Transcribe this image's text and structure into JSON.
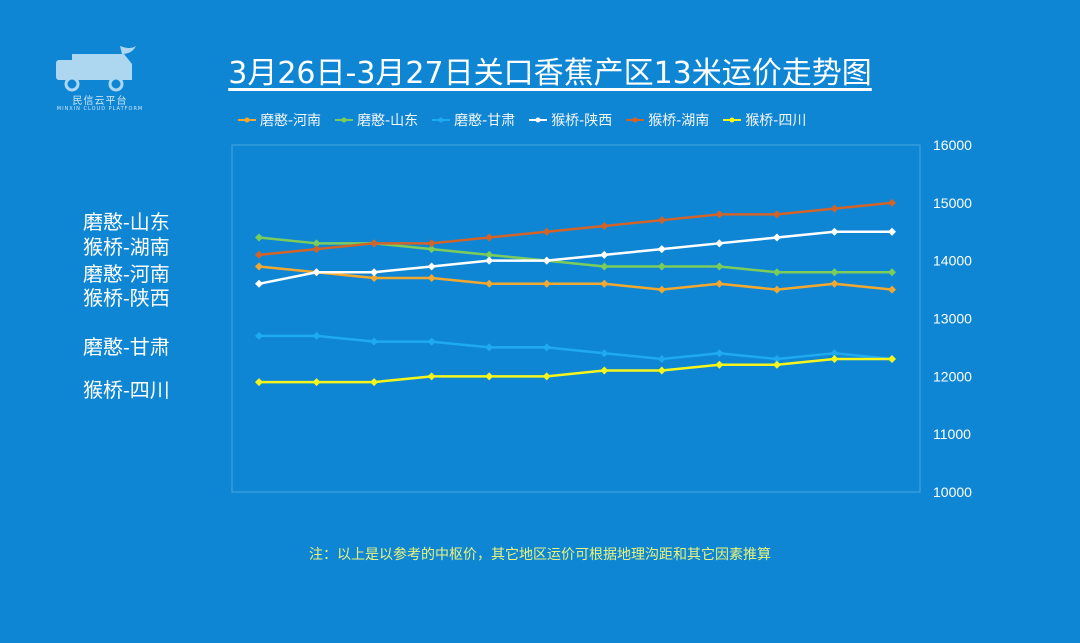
{
  "header": {
    "logo_text": "民信云平台",
    "logo_subtext": "MINXIN CLOUD PLATFORM",
    "title": "3月26日-3月27日关口香蕉产区13米运价走势图"
  },
  "side_labels": [
    "磨憨-山东",
    "猴桥-湖南",
    "磨憨-河南",
    "猴桥-陕西",
    "磨憨-甘肃",
    "猴桥-四川"
  ],
  "note": "注：以上是以参考的中枢价，其它地区运价可根据地理沟距和其它因素推算",
  "chart_data": {
    "type": "line",
    "title": "3月26日-3月27日关口香蕉产区13米运价走势图",
    "xlabel": "",
    "ylabel": "",
    "ylim": [
      10000,
      16000
    ],
    "yticks": [
      10000,
      11000,
      12000,
      13000,
      14000,
      15000,
      16000
    ],
    "y_axis_side": "right",
    "grid": false,
    "legend_position": "top",
    "x": [
      1,
      2,
      3,
      4,
      5,
      6,
      7,
      8,
      9,
      10,
      11,
      12
    ],
    "series": [
      {
        "name": "磨憨-河南",
        "color": "#f0a830",
        "values": [
          13900,
          13800,
          13700,
          13700,
          13600,
          13600,
          13600,
          13500,
          13600,
          13500,
          13600,
          13500
        ]
      },
      {
        "name": "磨憨-山东",
        "color": "#7ccc5c",
        "values": [
          14400,
          14300,
          14300,
          14200,
          14100,
          14000,
          13900,
          13900,
          13900,
          13800,
          13800,
          13800
        ]
      },
      {
        "name": "磨憨-甘肃",
        "color": "#1faaf0",
        "values": [
          12700,
          12700,
          12600,
          12600,
          12500,
          12500,
          12400,
          12300,
          12400,
          12300,
          12400,
          12300
        ]
      },
      {
        "name": "猴桥-陕西",
        "color": "#ffffff",
        "values": [
          13600,
          13800,
          13800,
          13900,
          14000,
          14000,
          14100,
          14200,
          14300,
          14400,
          14500,
          14500
        ]
      },
      {
        "name": "猴桥-湖南",
        "color": "#d2642a",
        "values": [
          14100,
          14200,
          14300,
          14300,
          14400,
          14500,
          14600,
          14700,
          14800,
          14800,
          14900,
          15000
        ]
      },
      {
        "name": "猴桥-四川",
        "color": "#f5f51e",
        "values": [
          11900,
          11900,
          11900,
          12000,
          12000,
          12000,
          12100,
          12100,
          12200,
          12200,
          12300,
          12300
        ]
      }
    ]
  }
}
